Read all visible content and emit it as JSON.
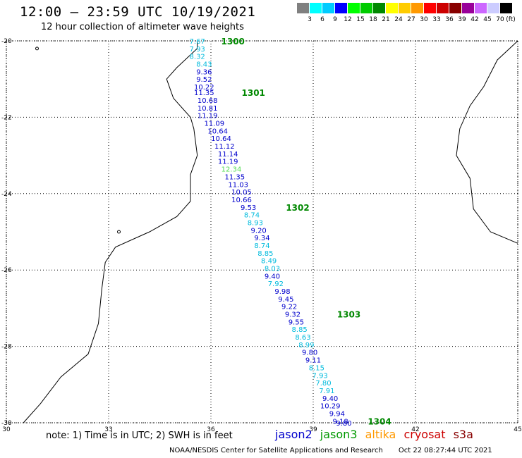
{
  "header": {
    "title": "12:00 — 23:59 UTC 10/19/2021",
    "subtitle": "12 hour collection of altimeter wave heights"
  },
  "color_scale": {
    "unit": "(ft)",
    "labels": [
      "3",
      "6",
      "9",
      "12",
      "15",
      "18",
      "21",
      "24",
      "27",
      "30",
      "33",
      "36",
      "39",
      "42",
      "45",
      "70"
    ],
    "colors": [
      "#808080",
      "#00ffff",
      "#00ccff",
      "#0000ff",
      "#00ff00",
      "#00cc00",
      "#008800",
      "#ffff00",
      "#ffcc00",
      "#ff9900",
      "#ff0000",
      "#cc0000",
      "#880000",
      "#990099",
      "#cc66ff",
      "#ccccff",
      "#000000"
    ]
  },
  "map": {
    "lon_range": [
      30,
      45
    ],
    "lat_range": [
      -30,
      -20
    ],
    "lon_ticks": [
      30,
      33,
      36,
      39,
      42,
      45
    ],
    "lat_ticks": [
      -20,
      -22,
      -24,
      -26,
      -28,
      -30
    ],
    "lon_labels": [
      "30",
      "33",
      "36",
      "39",
      "42",
      "45"
    ],
    "lat_labels": [
      "-20",
      "-22",
      "-24",
      "-26",
      "-28",
      "-30"
    ],
    "grid": true
  },
  "satellite_colors": {
    "jason2": "#0000cc",
    "jason3": "#009900",
    "altika": "#ff9900",
    "cryosat": "#cc0000",
    "s3a": "#880000"
  },
  "passes": [
    {
      "label": "1300",
      "lon": 36.3,
      "lat": -20.0
    },
    {
      "label": "1301",
      "lon": 36.9,
      "lat": -21.35
    },
    {
      "label": "1302",
      "lon": 38.2,
      "lat": -24.35
    },
    {
      "label": "1303",
      "lon": 39.7,
      "lat": -27.15
    },
    {
      "label": "1304",
      "lon": 40.6,
      "lat": -29.95
    }
  ],
  "wave_heights": [
    {
      "text": "7.67",
      "lon": 35.6,
      "lat": -20.0,
      "color": "#00bbdd"
    },
    {
      "text": "7.93",
      "lon": 35.6,
      "lat": -20.2,
      "color": "#00bbdd"
    },
    {
      "text": "8.32",
      "lon": 35.6,
      "lat": -20.4,
      "color": "#00bbdd"
    },
    {
      "text": "8.43",
      "lon": 35.8,
      "lat": -20.6,
      "color": "#00bbdd"
    },
    {
      "text": "9.36",
      "lon": 35.8,
      "lat": -20.8,
      "color": "#0000cc"
    },
    {
      "text": "9.52",
      "lon": 35.8,
      "lat": -21.0,
      "color": "#0000cc"
    },
    {
      "text": "10.22",
      "lon": 35.8,
      "lat": -21.2,
      "color": "#0000cc"
    },
    {
      "text": "11.35",
      "lon": 35.8,
      "lat": -21.35,
      "color": "#0000cc"
    },
    {
      "text": "10.68",
      "lon": 35.9,
      "lat": -21.55,
      "color": "#0000cc"
    },
    {
      "text": "10.81",
      "lon": 35.9,
      "lat": -21.75,
      "color": "#0000cc"
    },
    {
      "text": "11.19",
      "lon": 35.9,
      "lat": -21.95,
      "color": "#0000cc"
    },
    {
      "text": "11.09",
      "lon": 36.1,
      "lat": -22.15,
      "color": "#0000cc"
    },
    {
      "text": "10.64",
      "lon": 36.2,
      "lat": -22.35,
      "color": "#0000cc"
    },
    {
      "text": "10.64",
      "lon": 36.3,
      "lat": -22.55,
      "color": "#0000cc"
    },
    {
      "text": "11.12",
      "lon": 36.4,
      "lat": -22.75,
      "color": "#0000cc"
    },
    {
      "text": "11.14",
      "lon": 36.5,
      "lat": -22.95,
      "color": "#0000cc"
    },
    {
      "text": "11.19",
      "lon": 36.5,
      "lat": -23.15,
      "color": "#0000cc"
    },
    {
      "text": "12.34",
      "lon": 36.6,
      "lat": -23.35,
      "color": "#55dd55"
    },
    {
      "text": "11.35",
      "lon": 36.7,
      "lat": -23.55,
      "color": "#0000cc"
    },
    {
      "text": "11.03",
      "lon": 36.8,
      "lat": -23.75,
      "color": "#0000cc"
    },
    {
      "text": "10.05",
      "lon": 36.9,
      "lat": -23.95,
      "color": "#0000cc"
    },
    {
      "text": "10.66",
      "lon": 36.9,
      "lat": -24.15,
      "color": "#0000cc"
    },
    {
      "text": "9.53",
      "lon": 37.1,
      "lat": -24.35,
      "color": "#0000cc"
    },
    {
      "text": "8.74",
      "lon": 37.2,
      "lat": -24.55,
      "color": "#00bbdd"
    },
    {
      "text": "8.93",
      "lon": 37.3,
      "lat": -24.75,
      "color": "#00bbdd"
    },
    {
      "text": "9.20",
      "lon": 37.4,
      "lat": -24.95,
      "color": "#0000cc"
    },
    {
      "text": "9.34",
      "lon": 37.5,
      "lat": -25.15,
      "color": "#0000cc"
    },
    {
      "text": "8.74",
      "lon": 37.5,
      "lat": -25.35,
      "color": "#00bbdd"
    },
    {
      "text": "8.85",
      "lon": 37.6,
      "lat": -25.55,
      "color": "#00bbdd"
    },
    {
      "text": "8.49",
      "lon": 37.7,
      "lat": -25.75,
      "color": "#00bbdd"
    },
    {
      "text": "8.03",
      "lon": 37.8,
      "lat": -25.95,
      "color": "#00bbdd"
    },
    {
      "text": "9.40",
      "lon": 37.8,
      "lat": -26.15,
      "color": "#0000cc"
    },
    {
      "text": "7.92",
      "lon": 37.9,
      "lat": -26.35,
      "color": "#00bbdd"
    },
    {
      "text": "9.98",
      "lon": 38.1,
      "lat": -26.55,
      "color": "#0000cc"
    },
    {
      "text": "9.45",
      "lon": 38.2,
      "lat": -26.75,
      "color": "#0000cc"
    },
    {
      "text": "9.22",
      "lon": 38.3,
      "lat": -26.95,
      "color": "#0000cc"
    },
    {
      "text": "9.32",
      "lon": 38.4,
      "lat": -27.15,
      "color": "#0000cc"
    },
    {
      "text": "9.55",
      "lon": 38.5,
      "lat": -27.35,
      "color": "#0000cc"
    },
    {
      "text": "8.85",
      "lon": 38.6,
      "lat": -27.55,
      "color": "#00bbdd"
    },
    {
      "text": "8.63",
      "lon": 38.7,
      "lat": -27.75,
      "color": "#00bbdd"
    },
    {
      "text": "8.99",
      "lon": 38.8,
      "lat": -27.95,
      "color": "#00bbdd"
    },
    {
      "text": "9.80",
      "lon": 38.9,
      "lat": -28.15,
      "color": "#0000cc"
    },
    {
      "text": "9.11",
      "lon": 39.0,
      "lat": -28.35,
      "color": "#0000cc"
    },
    {
      "text": "8.15",
      "lon": 39.1,
      "lat": -28.55,
      "color": "#00bbdd"
    },
    {
      "text": "7.93",
      "lon": 39.2,
      "lat": -28.75,
      "color": "#00bbdd"
    },
    {
      "text": "7.80",
      "lon": 39.3,
      "lat": -28.95,
      "color": "#00bbdd"
    },
    {
      "text": "7.91",
      "lon": 39.4,
      "lat": -29.15,
      "color": "#00bbdd"
    },
    {
      "text": "9.40",
      "lon": 39.5,
      "lat": -29.35,
      "color": "#0000cc"
    },
    {
      "text": "10.29",
      "lon": 39.5,
      "lat": -29.55,
      "color": "#0000cc"
    },
    {
      "text": "9.94",
      "lon": 39.7,
      "lat": -29.75,
      "color": "#0000cc"
    },
    {
      "text": "9.18",
      "lon": 39.8,
      "lat": -29.95,
      "color": "#0000cc"
    },
    {
      "text": "9.80",
      "lon": 39.9,
      "lat": -30.0,
      "color": "#0000cc"
    }
  ],
  "coastlines": {
    "africa": [
      [
        35.6,
        -20.0
      ],
      [
        35.6,
        -20.2
      ],
      [
        35.0,
        -20.7
      ],
      [
        34.7,
        -21.0
      ],
      [
        34.9,
        -21.5
      ],
      [
        35.4,
        -22.0
      ],
      [
        35.5,
        -22.3
      ],
      [
        35.6,
        -23.0
      ],
      [
        35.4,
        -23.5
      ],
      [
        35.4,
        -24.2
      ],
      [
        35.0,
        -24.6
      ],
      [
        34.2,
        -25.0
      ],
      [
        33.2,
        -25.4
      ],
      [
        32.9,
        -25.8
      ],
      [
        32.8,
        -26.5
      ],
      [
        32.7,
        -27.4
      ],
      [
        32.4,
        -28.2
      ],
      [
        31.6,
        -28.8
      ],
      [
        31.0,
        -29.5
      ],
      [
        30.5,
        -30.0
      ]
    ],
    "madagascar": [
      [
        45.0,
        -20.0
      ],
      [
        44.4,
        -20.5
      ],
      [
        44.0,
        -21.2
      ],
      [
        43.6,
        -21.7
      ],
      [
        43.3,
        -22.3
      ],
      [
        43.2,
        -23.0
      ],
      [
        43.6,
        -23.6
      ],
      [
        43.7,
        -24.4
      ],
      [
        44.2,
        -25.0
      ],
      [
        45.0,
        -25.3
      ]
    ],
    "islands": [
      [
        30.9,
        -20.2
      ],
      [
        33.3,
        -25.0
      ]
    ]
  },
  "footer": {
    "note": "note:  1) Time is in UTC;  2) SWH is in feet",
    "legend": [
      "jason2",
      "jason3",
      "altika",
      "cryosat",
      "s3a"
    ],
    "credit": "NOAA/NESDIS Center for Satellite Applications and Research",
    "timestamp": "Oct 22 08:27:44 UTC 2021"
  }
}
